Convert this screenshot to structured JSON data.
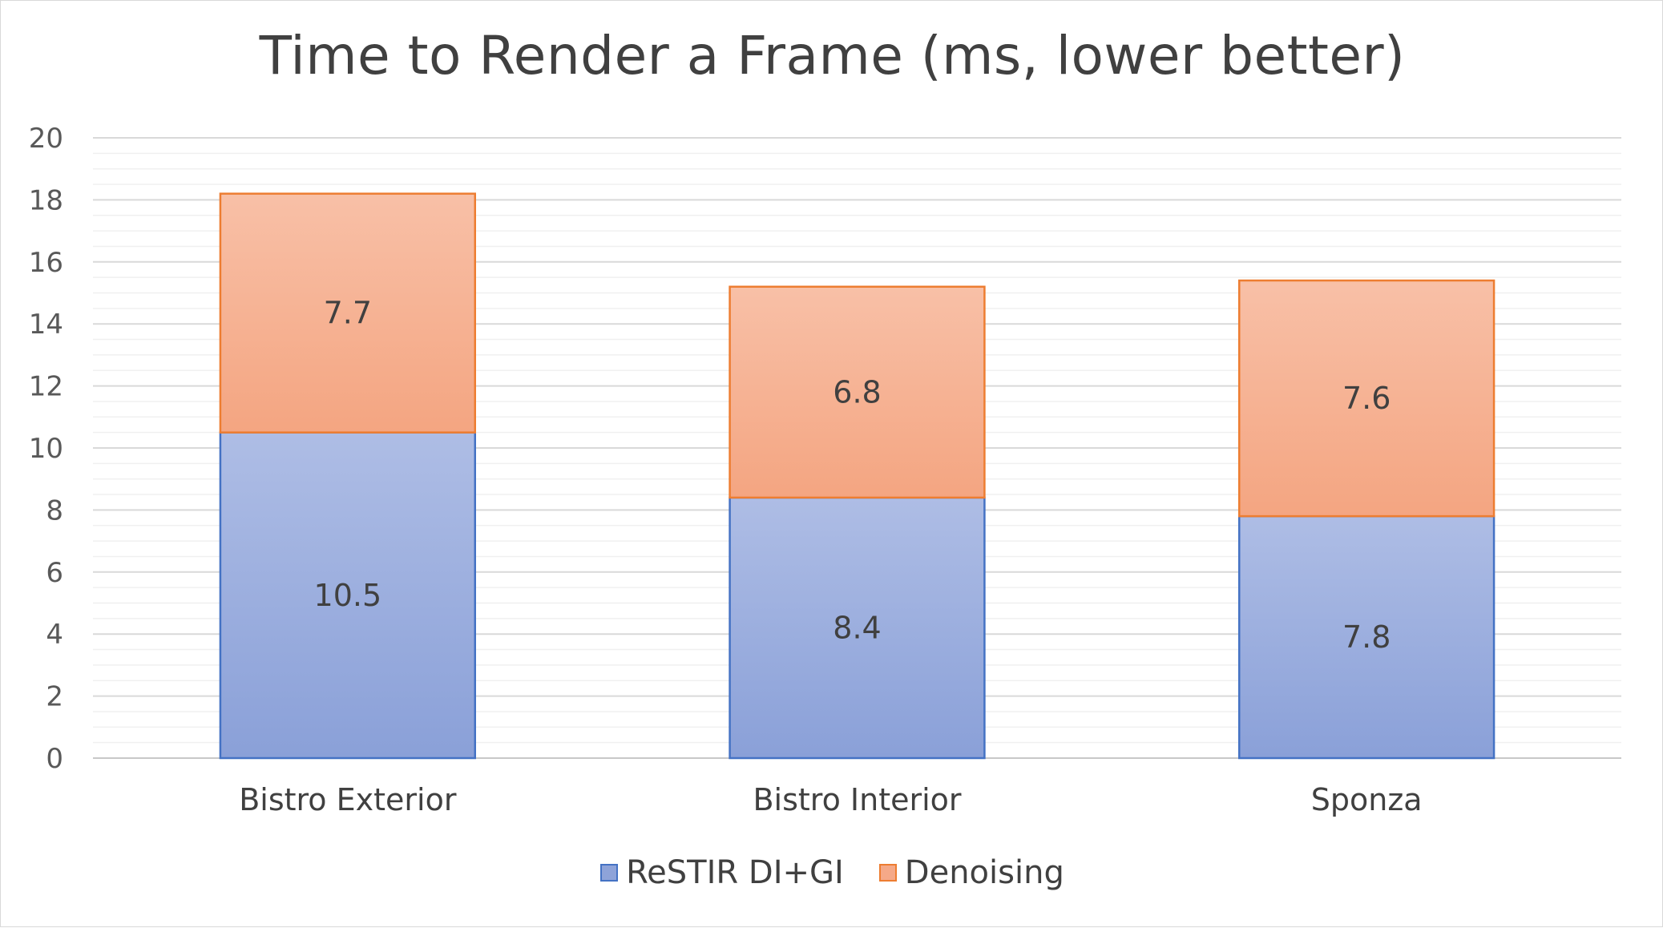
{
  "chart_data": {
    "type": "bar",
    "stacked": true,
    "title": "Time to Render a Frame (ms, lower better)",
    "xlabel": "",
    "ylabel": "",
    "categories": [
      "Bistro Exterior",
      "Bistro Interior",
      "Sponza"
    ],
    "series": [
      {
        "name": "ReSTIR DI+GI",
        "values": [
          10.5,
          8.4,
          7.8
        ],
        "color": "#8ea3d9",
        "border": "#4472c4"
      },
      {
        "name": "Denoising",
        "values": [
          7.7,
          6.8,
          7.6
        ],
        "color": "#f5a988",
        "border": "#ed7d31"
      }
    ],
    "ylim": [
      0,
      20
    ],
    "yticks": [
      0,
      2,
      4,
      6,
      8,
      10,
      12,
      14,
      16,
      18,
      20
    ],
    "grid": true,
    "legend": "bottom"
  }
}
